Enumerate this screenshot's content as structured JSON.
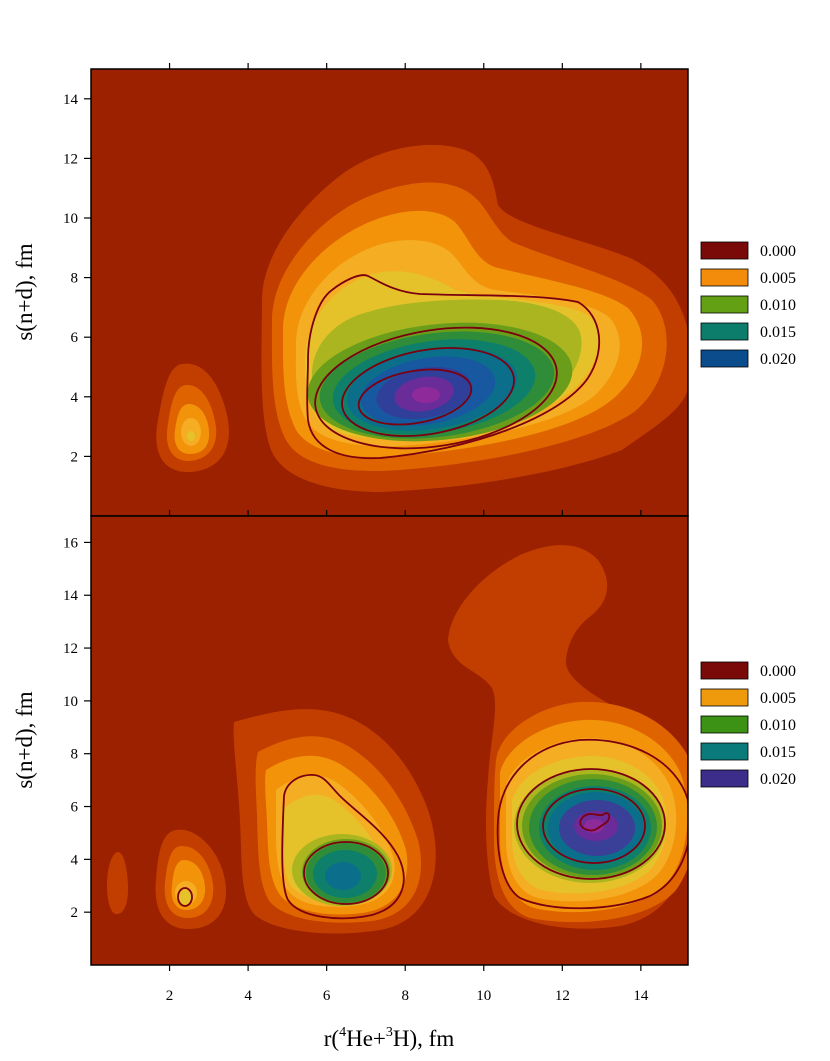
{
  "figure": {
    "xlabel": {
      "pre": "r(",
      "sup1": "4",
      "mid": "He+",
      "sup2": "3",
      "post": "H), fm"
    },
    "x_ticks": [
      2,
      4,
      6,
      8,
      10,
      12,
      14
    ],
    "xlim": [
      0,
      15.2
    ]
  },
  "colors": {
    "background": "#9c2100",
    "contour_line": "#7a0010",
    "levels_top": [
      "#c23e00",
      "#df6400",
      "#f2930a",
      "#f5ad24",
      "#e5c22a",
      "#aab520",
      "#6a9e1a",
      "#2f8d3a",
      "#0e7f6b",
      "#0b6f8c",
      "#1758a0",
      "#2f3f9a",
      "#6a2c98",
      "#8e2a9a"
    ],
    "levels_bottom": [
      "#c23e00",
      "#df6400",
      "#f2930a",
      "#f5ad24",
      "#e5c22a",
      "#aab520",
      "#6a9e1a",
      "#2f8d3a",
      "#0e7f6b",
      "#0b6f8c",
      "#3a3f98",
      "#6b2b99",
      "#8e2a9a"
    ]
  },
  "chart_data": [
    {
      "type": "heatmap",
      "subtype": "filled-contour",
      "panel": "top",
      "ylabel": "s(n+d), fm",
      "xlim": [
        0,
        15.2
      ],
      "ylim": [
        0,
        15
      ],
      "y_ticks": [
        2,
        4,
        6,
        8,
        10,
        12,
        14
      ],
      "legend": {
        "placement": "right",
        "entries": [
          {
            "label": "0.000",
            "color": "#7a0a08"
          },
          {
            "label": "0.005",
            "color": "#f28c0a"
          },
          {
            "label": "0.010",
            "color": "#64a014"
          },
          {
            "label": "0.015",
            "color": "#0b7d6a"
          },
          {
            "label": "0.020",
            "color": "#0a4c8c"
          }
        ]
      },
      "peaks": [
        {
          "x": 8.8,
          "y": 4.0,
          "value": 0.022
        },
        {
          "x": 2.6,
          "y": 2.8,
          "value": 0.004
        }
      ],
      "line_levels": [
        0.004,
        0.012,
        0.017,
        0.021
      ]
    },
    {
      "type": "heatmap",
      "subtype": "filled-contour",
      "panel": "bottom",
      "ylabel": "s(n+d), fm",
      "xlim": [
        0,
        15.2
      ],
      "ylim": [
        0,
        17
      ],
      "y_ticks": [
        2,
        4,
        6,
        8,
        10,
        12,
        14,
        16
      ],
      "legend": {
        "placement": "right",
        "entries": [
          {
            "label": "0.000",
            "color": "#7a0a08"
          },
          {
            "label": "0.005",
            "color": "#ef9a0c"
          },
          {
            "label": "0.010",
            "color": "#3c9214"
          },
          {
            "label": "0.015",
            "color": "#0b7a7a"
          },
          {
            "label": "0.020",
            "color": "#3c2d8a"
          }
        ]
      },
      "peaks": [
        {
          "x": 12.9,
          "y": 5.4,
          "value": 0.021
        },
        {
          "x": 6.5,
          "y": 3.5,
          "value": 0.014
        },
        {
          "x": 2.4,
          "y": 2.6,
          "value": 0.006
        },
        {
          "x": 0.7,
          "y": 3.2,
          "value": 0.001
        }
      ],
      "line_levels": [
        0.004,
        0.012,
        0.017,
        0.02
      ]
    }
  ]
}
